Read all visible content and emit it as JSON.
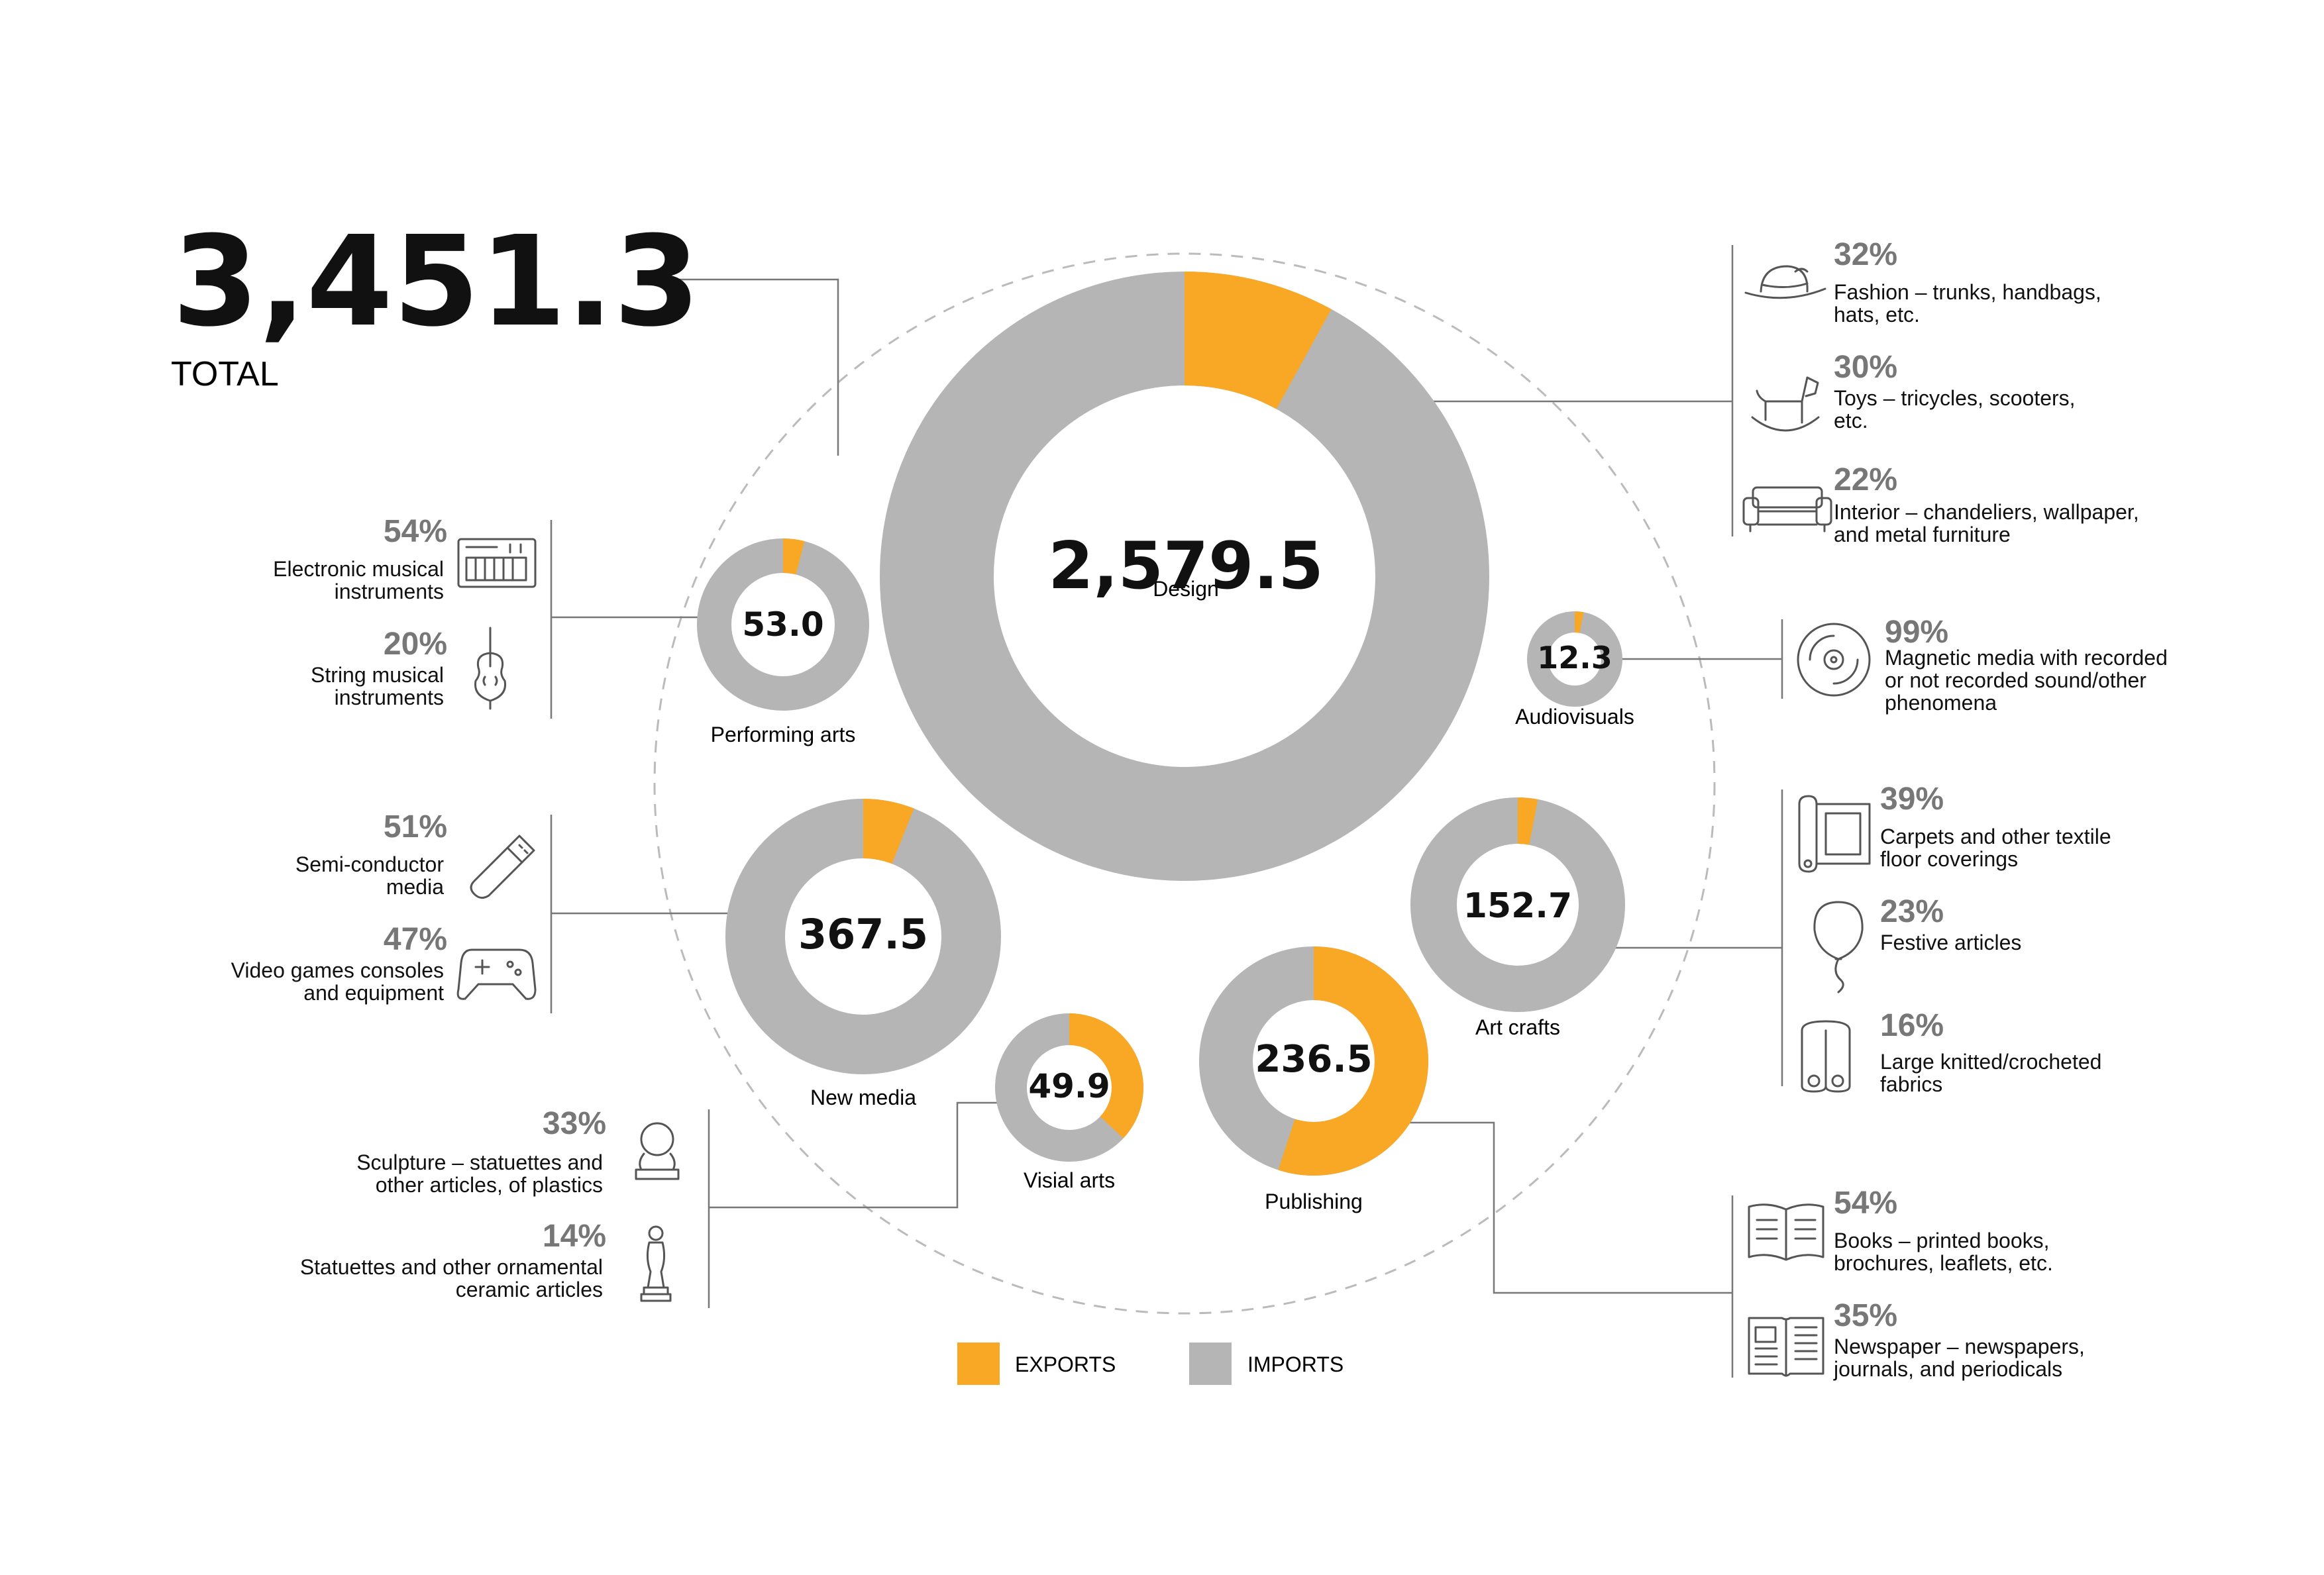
{
  "total": {
    "value": "3,451.3",
    "label": "TOTAL"
  },
  "colors": {
    "exports": "#F9A825",
    "imports": "#B5B5B5"
  },
  "legend": {
    "exports_label": "EXPORTS",
    "imports_label": "IMPORTS"
  },
  "chart_data": {
    "type": "pie",
    "total": 3451.3,
    "series": [
      {
        "category": "Design",
        "value": 2579.5,
        "value_label": "2,579.5",
        "export_share": 0.08
      },
      {
        "category": "Performing arts",
        "value": 53.0,
        "value_label": "53.0",
        "export_share": 0.04
      },
      {
        "category": "Audiovisuals",
        "value": 12.3,
        "value_label": "12.3",
        "export_share": 0.03
      },
      {
        "category": "New media",
        "value": 367.5,
        "value_label": "367.5",
        "export_share": 0.06
      },
      {
        "category": "Art crafts",
        "value": 152.7,
        "value_label": "152.7",
        "export_share": 0.03
      },
      {
        "category": "Visial arts",
        "value": 49.9,
        "value_label": "49.9",
        "export_share": 0.37
      },
      {
        "category": "Publishing",
        "value": 236.5,
        "value_label": "236.5",
        "export_share": 0.55
      }
    ]
  },
  "breakdowns": {
    "design": [
      {
        "pct": "32%",
        "lines": [
          "Fashion – trunks, handbags,",
          "hats, etc."
        ],
        "icon": "hat-icon"
      },
      {
        "pct": "30%",
        "lines": [
          "Toys – tricycles, scooters,",
          "etc."
        ],
        "icon": "rocking-horse-icon"
      },
      {
        "pct": "22%",
        "lines": [
          "Interior – chandeliers, wallpaper,",
          "and metal furniture"
        ],
        "icon": "sofa-icon"
      }
    ],
    "performing_arts": [
      {
        "pct": "54%",
        "lines": [
          "Electronic musical",
          "instruments"
        ],
        "icon": "synthesizer-icon"
      },
      {
        "pct": "20%",
        "lines": [
          "String musical",
          "instruments"
        ],
        "icon": "violin-icon"
      }
    ],
    "audiovisuals": [
      {
        "pct": "99%",
        "lines": [
          "Magnetic media with recorded",
          "or not recorded sound/other",
          "phenomena"
        ],
        "icon": "disc-icon"
      }
    ],
    "new_media": [
      {
        "pct": "51%",
        "lines": [
          "Semi-conductor",
          "media"
        ],
        "icon": "usb-stick-icon"
      },
      {
        "pct": "47%",
        "lines": [
          "Video games consoles",
          "and equipment"
        ],
        "icon": "gamepad-icon"
      }
    ],
    "art_crafts": [
      {
        "pct": "39%",
        "lines": [
          "Carpets and other textile",
          "floor coverings"
        ],
        "icon": "carpet-icon"
      },
      {
        "pct": "23%",
        "lines": [
          "Festive articles"
        ],
        "icon": "balloon-icon"
      },
      {
        "pct": "16%",
        "lines": [
          "Large knitted/crocheted",
          "fabrics"
        ],
        "icon": "fabric-rolls-icon"
      }
    ],
    "visual_arts": [
      {
        "pct": "33%",
        "lines": [
          "Sculpture – statuettes and",
          "other articles, of plastics"
        ],
        "icon": "bust-icon"
      },
      {
        "pct": "14%",
        "lines": [
          "Statuettes and other ornamental",
          "ceramic articles"
        ],
        "icon": "statuette-icon"
      }
    ],
    "publishing": [
      {
        "pct": "54%",
        "lines": [
          "Books – printed books,",
          "brochures, leaflets, etc."
        ],
        "icon": "book-icon"
      },
      {
        "pct": "35%",
        "lines": [
          "Newspaper – newspapers,",
          "journals, and periodicals"
        ],
        "icon": "newspaper-icon"
      }
    ]
  }
}
